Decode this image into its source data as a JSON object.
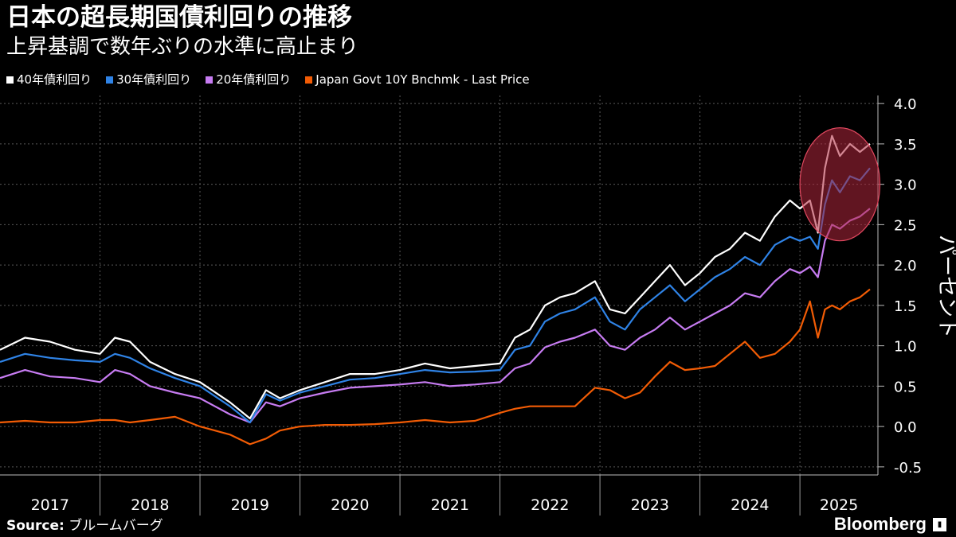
{
  "title": "日本の超長期国債利回りの推移",
  "subtitle": "上昇基調で数年ぶりの水準に高止まり",
  "source_label": "Source:",
  "source_text": "ブルームバーグ",
  "brand": "Bloomberg",
  "legend": [
    {
      "label": "40年債利回り",
      "color": "#ffffff"
    },
    {
      "label": "30年債利回り",
      "color": "#2f83e6"
    },
    {
      "label": "20年債利回り",
      "color": "#c77cf2"
    },
    {
      "label": "Japan Govt 10Y Bnchmk - Last Price",
      "color": "#f25c05"
    }
  ],
  "chart_data": {
    "type": "line",
    "title": "日本の超長期国債利回りの推移",
    "ylabel": "パーセント",
    "xlabel": "",
    "ylim": [
      -0.6,
      4.1
    ],
    "xlim": [
      2017.0,
      2025.78
    ],
    "yticks": [
      4.0,
      3.5,
      3.0,
      2.5,
      2.0,
      1.5,
      1.0,
      0.5,
      0.0,
      -0.5
    ],
    "ytick_labels": [
      "4.0",
      "3.5",
      "3.0",
      "2.5",
      "2.0",
      "1.5",
      "1.0",
      "0.5",
      "0.0",
      "-0.5"
    ],
    "xtick_labels": [
      "2017",
      "2018",
      "2019",
      "2020",
      "2021",
      "2022",
      "2023",
      "2024",
      "2025"
    ],
    "grid": true,
    "highlight_ellipse": {
      "x_center": 2025.4,
      "y_center": 3.0,
      "x_radius": 0.4,
      "y_radius": 0.7,
      "color": "#b0263c"
    },
    "series": [
      {
        "name": "40年債利回り",
        "color": "#ffffff",
        "x": [
          2017.0,
          2017.25,
          2017.5,
          2017.75,
          2018.0,
          2018.15,
          2018.3,
          2018.5,
          2018.75,
          2019.0,
          2019.3,
          2019.5,
          2019.66,
          2019.8,
          2020.0,
          2020.25,
          2020.5,
          2020.75,
          2021.0,
          2021.25,
          2021.5,
          2021.75,
          2022.0,
          2022.15,
          2022.3,
          2022.45,
          2022.6,
          2022.75,
          2022.95,
          2023.1,
          2023.25,
          2023.4,
          2023.55,
          2023.7,
          2023.85,
          2024.0,
          2024.15,
          2024.3,
          2024.45,
          2024.6,
          2024.75,
          2024.9,
          2025.0,
          2025.1,
          2025.18,
          2025.25,
          2025.32,
          2025.4,
          2025.5,
          2025.6,
          2025.7
        ],
        "values": [
          0.95,
          1.1,
          1.05,
          0.95,
          0.9,
          1.1,
          1.05,
          0.8,
          0.65,
          0.55,
          0.3,
          0.1,
          0.45,
          0.35,
          0.45,
          0.55,
          0.65,
          0.65,
          0.7,
          0.78,
          0.72,
          0.75,
          0.78,
          1.1,
          1.2,
          1.5,
          1.6,
          1.65,
          1.8,
          1.45,
          1.4,
          1.6,
          1.8,
          2.0,
          1.75,
          1.9,
          2.1,
          2.2,
          2.4,
          2.3,
          2.6,
          2.8,
          2.7,
          2.8,
          2.4,
          3.2,
          3.6,
          3.35,
          3.5,
          3.4,
          3.5
        ]
      },
      {
        "name": "30年債利回り",
        "color": "#2f83e6",
        "x": [
          2017.0,
          2017.25,
          2017.5,
          2017.75,
          2018.0,
          2018.15,
          2018.3,
          2018.5,
          2018.75,
          2019.0,
          2019.3,
          2019.5,
          2019.66,
          2019.8,
          2020.0,
          2020.25,
          2020.5,
          2020.75,
          2021.0,
          2021.25,
          2021.5,
          2021.75,
          2022.0,
          2022.15,
          2022.3,
          2022.45,
          2022.6,
          2022.75,
          2022.95,
          2023.1,
          2023.25,
          2023.4,
          2023.55,
          2023.7,
          2023.85,
          2024.0,
          2024.15,
          2024.3,
          2024.45,
          2024.6,
          2024.75,
          2024.9,
          2025.0,
          2025.1,
          2025.18,
          2025.25,
          2025.32,
          2025.4,
          2025.5,
          2025.6,
          2025.7
        ],
        "values": [
          0.8,
          0.9,
          0.85,
          0.82,
          0.8,
          0.9,
          0.85,
          0.72,
          0.6,
          0.5,
          0.25,
          0.05,
          0.4,
          0.32,
          0.42,
          0.5,
          0.58,
          0.6,
          0.65,
          0.7,
          0.67,
          0.68,
          0.7,
          0.95,
          1.0,
          1.3,
          1.4,
          1.45,
          1.6,
          1.3,
          1.2,
          1.45,
          1.6,
          1.75,
          1.55,
          1.7,
          1.85,
          1.95,
          2.1,
          2.0,
          2.25,
          2.35,
          2.3,
          2.35,
          2.2,
          2.75,
          3.05,
          2.9,
          3.1,
          3.05,
          3.2
        ]
      },
      {
        "name": "20年債利回り",
        "color": "#c77cf2",
        "x": [
          2017.0,
          2017.25,
          2017.5,
          2017.75,
          2018.0,
          2018.15,
          2018.3,
          2018.5,
          2018.75,
          2019.0,
          2019.3,
          2019.5,
          2019.66,
          2019.8,
          2020.0,
          2020.25,
          2020.5,
          2020.75,
          2021.0,
          2021.25,
          2021.5,
          2021.75,
          2022.0,
          2022.15,
          2022.3,
          2022.45,
          2022.6,
          2022.75,
          2022.95,
          2023.1,
          2023.25,
          2023.4,
          2023.55,
          2023.7,
          2023.85,
          2024.0,
          2024.15,
          2024.3,
          2024.45,
          2024.6,
          2024.75,
          2024.9,
          2025.0,
          2025.1,
          2025.18,
          2025.25,
          2025.32,
          2025.4,
          2025.5,
          2025.6,
          2025.7
        ],
        "values": [
          0.6,
          0.7,
          0.62,
          0.6,
          0.55,
          0.7,
          0.65,
          0.5,
          0.42,
          0.35,
          0.15,
          0.05,
          0.3,
          0.25,
          0.35,
          0.42,
          0.48,
          0.5,
          0.52,
          0.55,
          0.5,
          0.52,
          0.55,
          0.72,
          0.78,
          0.98,
          1.05,
          1.1,
          1.2,
          1.0,
          0.95,
          1.1,
          1.2,
          1.35,
          1.2,
          1.3,
          1.4,
          1.5,
          1.65,
          1.6,
          1.8,
          1.95,
          1.9,
          1.98,
          1.85,
          2.3,
          2.5,
          2.45,
          2.55,
          2.6,
          2.7
        ]
      },
      {
        "name": "Japan Govt 10Y Bnchmk - Last Price",
        "color": "#f25c05",
        "x": [
          2017.0,
          2017.25,
          2017.5,
          2017.75,
          2018.0,
          2018.15,
          2018.3,
          2018.5,
          2018.75,
          2019.0,
          2019.3,
          2019.5,
          2019.66,
          2019.8,
          2020.0,
          2020.25,
          2020.5,
          2020.75,
          2021.0,
          2021.25,
          2021.5,
          2021.75,
          2022.0,
          2022.15,
          2022.3,
          2022.45,
          2022.6,
          2022.75,
          2022.95,
          2023.1,
          2023.25,
          2023.4,
          2023.55,
          2023.7,
          2023.85,
          2024.0,
          2024.15,
          2024.3,
          2024.45,
          2024.6,
          2024.75,
          2024.9,
          2025.0,
          2025.1,
          2025.18,
          2025.25,
          2025.32,
          2025.4,
          2025.5,
          2025.6,
          2025.7
        ],
        "values": [
          0.05,
          0.07,
          0.05,
          0.05,
          0.08,
          0.08,
          0.05,
          0.08,
          0.12,
          0.0,
          -0.1,
          -0.22,
          -0.15,
          -0.05,
          0.0,
          0.02,
          0.02,
          0.03,
          0.05,
          0.08,
          0.05,
          0.07,
          0.17,
          0.22,
          0.25,
          0.25,
          0.25,
          0.25,
          0.48,
          0.45,
          0.35,
          0.42,
          0.62,
          0.8,
          0.7,
          0.72,
          0.75,
          0.9,
          1.05,
          0.85,
          0.9,
          1.05,
          1.2,
          1.55,
          1.1,
          1.45,
          1.5,
          1.45,
          1.55,
          1.6,
          1.7
        ]
      }
    ]
  }
}
